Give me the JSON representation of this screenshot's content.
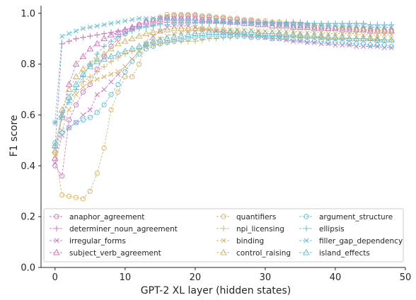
{
  "chart_data": {
    "type": "line",
    "title": "",
    "xlabel": "GPT-2 XL layer (hidden states)",
    "ylabel": "F1 score",
    "xlim": [
      -2,
      50
    ],
    "ylim": [
      0.0,
      1.03
    ],
    "xticks": [
      0,
      10,
      20,
      30,
      40,
      50
    ],
    "yticks": [
      0.0,
      0.2,
      0.4,
      0.6,
      0.8,
      1.0
    ],
    "ytick_labels": [
      "0.0",
      "0.2",
      "0.4",
      "0.6",
      "0.8",
      "1.0"
    ],
    "grid": false,
    "legend_position": "bottom",
    "x": [
      0,
      1,
      2,
      3,
      4,
      5,
      6,
      7,
      8,
      9,
      10,
      11,
      12,
      13,
      14,
      15,
      16,
      17,
      18,
      19,
      20,
      21,
      22,
      23,
      24,
      25,
      26,
      27,
      28,
      29,
      30,
      31,
      32,
      33,
      34,
      35,
      36,
      37,
      38,
      39,
      40,
      41,
      42,
      43,
      44,
      45,
      46,
      47,
      48
    ],
    "series": [
      {
        "name": "anaphor_agreement",
        "color": "#cc79c0",
        "marker": "circle",
        "values": [
          0.4,
          0.36,
          0.58,
          0.64,
          0.69,
          0.72,
          0.78,
          0.83,
          0.87,
          0.9,
          0.92,
          0.94,
          0.955,
          0.965,
          0.975,
          0.98,
          0.985,
          0.99,
          0.99,
          0.99,
          0.99,
          0.985,
          0.985,
          0.98,
          0.98,
          0.975,
          0.975,
          0.97,
          0.97,
          0.965,
          0.96,
          0.96,
          0.955,
          0.955,
          0.95,
          0.95,
          0.95,
          0.945,
          0.945,
          0.94,
          0.94,
          0.94,
          0.94,
          0.935,
          0.935,
          0.935,
          0.935,
          0.93,
          0.93
        ]
      },
      {
        "name": "determiner_noun_agreement",
        "color": "#cc79c0",
        "marker": "plus",
        "values": [
          0.47,
          0.88,
          0.89,
          0.9,
          0.905,
          0.91,
          0.915,
          0.92,
          0.925,
          0.93,
          0.935,
          0.94,
          0.945,
          0.95,
          0.955,
          0.96,
          0.965,
          0.965,
          0.965,
          0.965,
          0.965,
          0.965,
          0.965,
          0.965,
          0.965,
          0.965,
          0.965,
          0.965,
          0.965,
          0.965,
          0.965,
          0.965,
          0.965,
          0.965,
          0.965,
          0.965,
          0.96,
          0.96,
          0.96,
          0.96,
          0.96,
          0.96,
          0.96,
          0.96,
          0.96,
          0.955,
          0.955,
          0.955,
          0.955
        ]
      },
      {
        "name": "irregular_forms",
        "color": "#cc79c0",
        "marker": "x",
        "values": [
          0.41,
          0.52,
          0.55,
          0.57,
          0.6,
          0.62,
          0.68,
          0.7,
          0.73,
          0.76,
          0.79,
          0.82,
          0.85,
          0.88,
          0.91,
          0.93,
          0.945,
          0.95,
          0.95,
          0.95,
          0.945,
          0.94,
          0.935,
          0.93,
          0.925,
          0.92,
          0.92,
          0.915,
          0.91,
          0.91,
          0.905,
          0.9,
          0.9,
          0.895,
          0.89,
          0.89,
          0.885,
          0.885,
          0.88,
          0.88,
          0.875,
          0.875,
          0.875,
          0.87,
          0.87,
          0.87,
          0.87,
          0.865,
          0.865
        ]
      },
      {
        "name": "subject_verb_agreement",
        "color": "#cc79c0",
        "marker": "triangle",
        "values": [
          0.43,
          0.6,
          0.72,
          0.8,
          0.83,
          0.86,
          0.88,
          0.9,
          0.915,
          0.925,
          0.935,
          0.945,
          0.955,
          0.965,
          0.97,
          0.975,
          0.98,
          0.98,
          0.98,
          0.98,
          0.98,
          0.975,
          0.975,
          0.97,
          0.97,
          0.965,
          0.965,
          0.96,
          0.96,
          0.955,
          0.955,
          0.95,
          0.95,
          0.95,
          0.945,
          0.945,
          0.945,
          0.94,
          0.94,
          0.94,
          0.94,
          0.935,
          0.935,
          0.935,
          0.935,
          0.93,
          0.93,
          0.93,
          0.93
        ]
      },
      {
        "name": "quantifiers",
        "color": "#d4b870",
        "marker": "circle",
        "values": [
          0.45,
          0.285,
          0.28,
          0.275,
          0.27,
          0.3,
          0.37,
          0.47,
          0.62,
          0.69,
          0.75,
          0.75,
          0.8,
          0.88,
          0.96,
          0.985,
          0.995,
          0.995,
          0.995,
          0.995,
          0.995,
          0.99,
          0.99,
          0.985,
          0.985,
          0.98,
          0.98,
          0.975,
          0.975,
          0.97,
          0.97,
          0.965,
          0.965,
          0.96,
          0.96,
          0.955,
          0.955,
          0.95,
          0.95,
          0.95,
          0.945,
          0.945,
          0.945,
          0.94,
          0.94,
          0.94,
          0.935,
          0.935,
          0.935
        ]
      },
      {
        "name": "npi_licensing",
        "color": "#d4b870",
        "marker": "plus",
        "values": [
          0.48,
          0.59,
          0.66,
          0.7,
          0.73,
          0.75,
          0.77,
          0.79,
          0.81,
          0.825,
          0.84,
          0.85,
          0.86,
          0.87,
          0.875,
          0.88,
          0.885,
          0.89,
          0.89,
          0.89,
          0.89,
          0.895,
          0.9,
          0.9,
          0.905,
          0.905,
          0.91,
          0.91,
          0.91,
          0.91,
          0.91,
          0.91,
          0.91,
          0.91,
          0.91,
          0.905,
          0.905,
          0.905,
          0.905,
          0.9,
          0.9,
          0.9,
          0.9,
          0.9,
          0.9,
          0.895,
          0.895,
          0.895,
          0.895
        ]
      },
      {
        "name": "binding",
        "color": "#d4b870",
        "marker": "x",
        "values": [
          0.44,
          0.54,
          0.62,
          0.68,
          0.71,
          0.73,
          0.74,
          0.75,
          0.76,
          0.77,
          0.79,
          0.82,
          0.85,
          0.87,
          0.89,
          0.9,
          0.91,
          0.92,
          0.925,
          0.93,
          0.93,
          0.935,
          0.935,
          0.935,
          0.935,
          0.935,
          0.935,
          0.935,
          0.935,
          0.93,
          0.93,
          0.93,
          0.93,
          0.93,
          0.93,
          0.925,
          0.925,
          0.925,
          0.925,
          0.92,
          0.92,
          0.92,
          0.92,
          0.92,
          0.915,
          0.915,
          0.915,
          0.915,
          0.915
        ]
      },
      {
        "name": "control_raising",
        "color": "#d4b870",
        "marker": "triangle",
        "values": [
          0.46,
          0.62,
          0.7,
          0.75,
          0.78,
          0.8,
          0.82,
          0.84,
          0.86,
          0.88,
          0.89,
          0.9,
          0.91,
          0.92,
          0.925,
          0.93,
          0.935,
          0.94,
          0.94,
          0.94,
          0.94,
          0.94,
          0.94,
          0.935,
          0.935,
          0.93,
          0.93,
          0.925,
          0.925,
          0.925,
          0.92,
          0.92,
          0.915,
          0.915,
          0.915,
          0.91,
          0.91,
          0.91,
          0.905,
          0.905,
          0.905,
          0.905,
          0.9,
          0.9,
          0.9,
          0.9,
          0.9,
          0.895,
          0.895
        ]
      },
      {
        "name": "argument_structure",
        "color": "#6bbfd6",
        "marker": "circle",
        "values": [
          0.49,
          0.53,
          0.55,
          0.57,
          0.58,
          0.59,
          0.61,
          0.64,
          0.68,
          0.72,
          0.77,
          0.81,
          0.84,
          0.86,
          0.87,
          0.88,
          0.885,
          0.89,
          0.895,
          0.9,
          0.905,
          0.905,
          0.91,
          0.91,
          0.91,
          0.91,
          0.91,
          0.91,
          0.905,
          0.905,
          0.905,
          0.9,
          0.9,
          0.9,
          0.895,
          0.895,
          0.89,
          0.89,
          0.89,
          0.885,
          0.885,
          0.885,
          0.88,
          0.88,
          0.88,
          0.875,
          0.875,
          0.875,
          0.87
        ]
      },
      {
        "name": "ellipsis",
        "color": "#6bbfd6",
        "marker": "plus",
        "values": [
          0.57,
          0.61,
          0.65,
          0.7,
          0.75,
          0.8,
          0.84,
          0.87,
          0.89,
          0.91,
          0.92,
          0.93,
          0.94,
          0.945,
          0.95,
          0.955,
          0.955,
          0.96,
          0.96,
          0.96,
          0.96,
          0.96,
          0.96,
          0.96,
          0.96,
          0.96,
          0.96,
          0.96,
          0.96,
          0.96,
          0.96,
          0.96,
          0.96,
          0.96,
          0.96,
          0.96,
          0.96,
          0.96,
          0.96,
          0.96,
          0.96,
          0.96,
          0.96,
          0.96,
          0.96,
          0.955,
          0.955,
          0.955,
          0.955
        ]
      },
      {
        "name": "filler_gap_dependency",
        "color": "#6bbfd6",
        "marker": "x",
        "values": [
          0.57,
          0.91,
          0.92,
          0.93,
          0.94,
          0.945,
          0.95,
          0.955,
          0.96,
          0.965,
          0.97,
          0.975,
          0.98,
          0.98,
          0.98,
          0.98,
          0.98,
          0.975,
          0.975,
          0.975,
          0.97,
          0.97,
          0.97,
          0.97,
          0.965,
          0.965,
          0.965,
          0.965,
          0.96,
          0.96,
          0.96,
          0.96,
          0.96,
          0.955,
          0.955,
          0.955,
          0.955,
          0.955,
          0.95,
          0.95,
          0.95,
          0.95,
          0.95,
          0.95,
          0.95,
          0.945,
          0.945,
          0.945,
          0.945
        ]
      },
      {
        "name": "island_effects",
        "color": "#6bbfd6",
        "marker": "triangle",
        "values": [
          0.48,
          0.59,
          0.67,
          0.72,
          0.76,
          0.79,
          0.81,
          0.82,
          0.83,
          0.84,
          0.85,
          0.86,
          0.87,
          0.88,
          0.89,
          0.895,
          0.9,
          0.905,
          0.91,
          0.915,
          0.92,
          0.92,
          0.925,
          0.925,
          0.925,
          0.925,
          0.925,
          0.925,
          0.925,
          0.92,
          0.92,
          0.92,
          0.92,
          0.915,
          0.915,
          0.915,
          0.91,
          0.91,
          0.91,
          0.905,
          0.905,
          0.905,
          0.9,
          0.9,
          0.9,
          0.9,
          0.895,
          0.895,
          0.895
        ]
      }
    ]
  }
}
